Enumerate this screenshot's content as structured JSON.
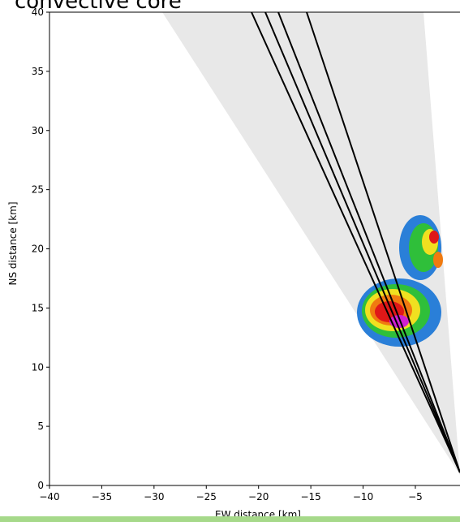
{
  "chart_data": {
    "type": "radar-scan",
    "title": "convective core",
    "xlabel": "EW distance [km]",
    "ylabel": "NS distance [km]",
    "xlim": [
      -40,
      0
    ],
    "ylim": [
      0,
      40
    ],
    "xticks": [
      {
        "value": -40,
        "label": "−40"
      },
      {
        "value": -35,
        "label": "−35"
      },
      {
        "value": -30,
        "label": "−30"
      },
      {
        "value": -25,
        "label": "−25"
      },
      {
        "value": -20,
        "label": "−20"
      },
      {
        "value": -15,
        "label": "−15"
      },
      {
        "value": -10,
        "label": "−10"
      },
      {
        "value": -5,
        "label": "−5"
      }
    ],
    "yticks": [
      0,
      5,
      10,
      15,
      20,
      25,
      30,
      35,
      40
    ]
  }
}
